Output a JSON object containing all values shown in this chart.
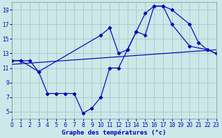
{
  "xlabel": "Graphe des températures (°c)",
  "background_color": "#cce8e8",
  "grid_color": "#aacccc",
  "line_color": "#0000bb",
  "xlim": [
    0,
    23
  ],
  "ylim": [
    4,
    20
  ],
  "xticks": [
    0,
    1,
    2,
    3,
    4,
    5,
    6,
    7,
    8,
    9,
    10,
    11,
    12,
    13,
    14,
    15,
    16,
    17,
    18,
    19,
    20,
    21,
    22,
    23
  ],
  "yticks": [
    5,
    7,
    9,
    11,
    13,
    15,
    17,
    19
  ],
  "series": [
    {
      "x": [
        0,
        1,
        2,
        3,
        10,
        11,
        12,
        13,
        14,
        15,
        16,
        17,
        18,
        20,
        21,
        22,
        23
      ],
      "y": [
        12,
        12,
        12,
        10.5,
        15.5,
        16.5,
        13,
        13.5,
        16,
        18.5,
        19.5,
        19.5,
        19,
        17,
        14.5,
        13.5,
        13
      ]
    },
    {
      "x": [
        0,
        1,
        3,
        4,
        5,
        6,
        7,
        8,
        9,
        10,
        11,
        12,
        13,
        14,
        15,
        16,
        17,
        18,
        20,
        22,
        23
      ],
      "y": [
        12,
        12,
        10.5,
        7.5,
        7.5,
        7.5,
        7.5,
        4.8,
        5.5,
        7,
        11,
        11,
        13.5,
        16,
        15.5,
        19.5,
        19.5,
        17,
        14,
        13.5,
        13
      ]
    },
    {
      "x": [
        0,
        23
      ],
      "y": [
        11.5,
        13.5
      ]
    }
  ]
}
